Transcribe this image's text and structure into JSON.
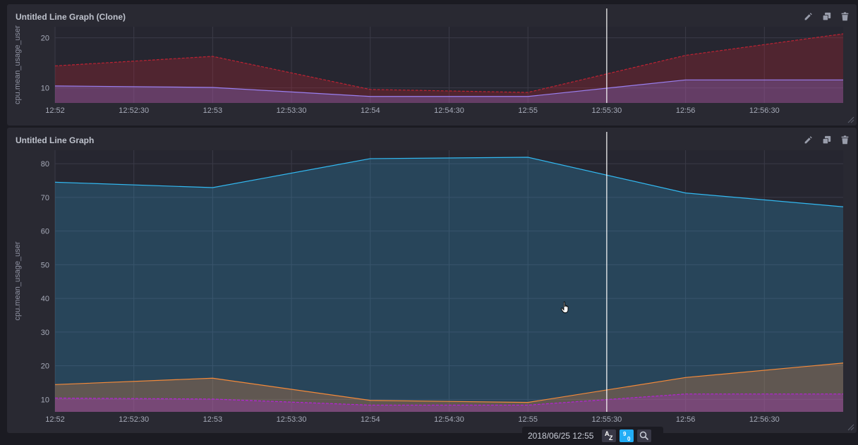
{
  "panels": [
    {
      "title": "Untitled Line Graph (Clone)",
      "actions": [
        "pencil-icon",
        "duplicate-icon",
        "trash-icon"
      ]
    },
    {
      "title": "Untitled Line Graph",
      "actions": [
        "pencil-icon",
        "duplicate-icon",
        "trash-icon"
      ]
    }
  ],
  "chart_data": [
    {
      "type": "area",
      "title": "",
      "ylabel": "cpu.mean_usage_user",
      "xlabel": "",
      "x": [
        "12:52",
        "12:53",
        "12:54",
        "12:55",
        "12:56",
        "12:57"
      ],
      "x_ticks": [
        "12:52",
        "12:52:30",
        "12:53",
        "12:53:30",
        "12:54",
        "12:54:30",
        "12:55",
        "12:55:30",
        "12:56",
        "12:56:30"
      ],
      "y_ticks": [
        10,
        20
      ],
      "ylim": [
        7,
        22.2
      ],
      "grid": true,
      "series": [
        {
          "values": [
            14.4,
            16.3,
            9.7,
            9.1,
            16.5,
            20.8
          ],
          "color": "#bd2333",
          "dashed": true
        },
        {
          "values": [
            10.4,
            10.1,
            8.3,
            8.3,
            11.6,
            11.6
          ],
          "color": "#9a7ff0",
          "dashed": false
        }
      ]
    },
    {
      "type": "area",
      "title": "",
      "ylabel": "cpu.mean_usage_user",
      "xlabel": "",
      "x": [
        "12:52",
        "12:53",
        "12:54",
        "12:55",
        "12:56",
        "12:57"
      ],
      "x_ticks": [
        "12:52",
        "12:52:30",
        "12:53",
        "12:53:30",
        "12:54",
        "12:54:30",
        "12:55",
        "12:55:30",
        "12:56",
        "12:56:30"
      ],
      "y_ticks": [
        10,
        20,
        30,
        40,
        50,
        60,
        70,
        80
      ],
      "ylim": [
        6.3,
        84
      ],
      "grid": true,
      "series": [
        {
          "values": [
            74.5,
            72.9,
            81.5,
            81.9,
            71.3,
            67.2
          ],
          "color": "#32b8f0",
          "dashed": false
        },
        {
          "values": [
            14.4,
            16.3,
            9.7,
            9.1,
            16.5,
            20.8
          ],
          "color": "#f48a3a",
          "dashed": false
        },
        {
          "values": [
            10.4,
            10.1,
            8.3,
            8.3,
            11.6,
            11.6
          ],
          "color": "#b424d6",
          "dashed": true
        }
      ]
    }
  ],
  "crosshair_time": "12:55:30",
  "tooltip": {
    "timestamp": "2018/06/25 12:55",
    "sort_alpha_label": "A Z",
    "sort_num_label": "9 0",
    "search_icon": "search-icon"
  },
  "colors": {
    "background": "#1b1b22",
    "panel": "#292932",
    "grid": "#3a3a47",
    "text": "#a6aab8",
    "accent": "#22adf6"
  }
}
